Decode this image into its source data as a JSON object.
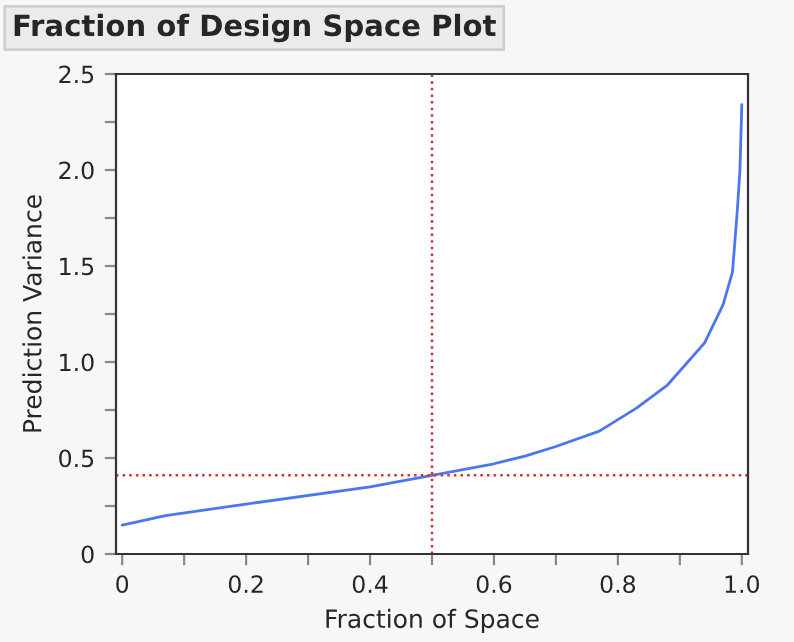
{
  "chart_data": {
    "type": "line",
    "title": "Fraction of Design Space Plot",
    "xlabel": "Fraction of Space",
    "ylabel": "Prediction Variance",
    "x": [
      0,
      0.07,
      0.2,
      0.4,
      0.5,
      0.6,
      0.65,
      0.7,
      0.77,
      0.83,
      0.88,
      0.94,
      0.97,
      0.985,
      0.993,
      0.997,
      1.0
    ],
    "series": [
      {
        "color": "#4a76f0",
        "values": [
          0.15,
          0.2,
          0.26,
          0.35,
          0.41,
          0.47,
          0.51,
          0.56,
          0.64,
          0.76,
          0.88,
          1.1,
          1.3,
          1.47,
          1.8,
          2.0,
          2.34
        ]
      }
    ],
    "xlim": [
      -0.01,
      1.01
    ],
    "ylim": [
      0,
      2.5
    ],
    "xticks": [
      0,
      {
        "value": 0.1,
        "label": null
      },
      0.2,
      {
        "value": 0.3,
        "label": null
      },
      0.4,
      {
        "value": 0.5,
        "label": null
      },
      0.6,
      {
        "value": 0.7,
        "label": null
      },
      0.8,
      {
        "value": 0.9,
        "label": null
      },
      {
        "value": 1.0,
        "label": "1.0"
      }
    ],
    "yticks": [
      0,
      {
        "value": 0.25,
        "label": null
      },
      0.5,
      {
        "value": 0.75,
        "label": null
      },
      {
        "value": 1.0,
        "label": "1.0"
      },
      {
        "value": 1.25,
        "label": null
      },
      1.5,
      {
        "value": 1.75,
        "label": null
      },
      {
        "value": 2.0,
        "label": "2.0"
      },
      {
        "value": 2.25,
        "label": null
      },
      2.5
    ],
    "ref_lines": [
      {
        "axis": "x",
        "value": 0.5,
        "color": "#cc3333",
        "line_style": "dotted"
      },
      {
        "axis": "y",
        "value": 0.41,
        "color": "#cc3333",
        "line_style": "dotted"
      }
    ],
    "grid": false,
    "marker": "none",
    "line_style": "solid"
  }
}
